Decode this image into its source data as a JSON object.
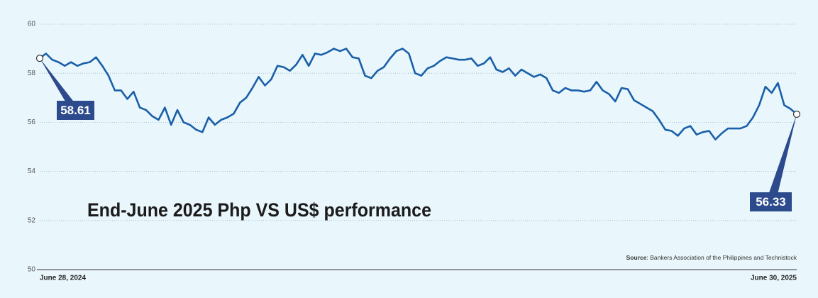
{
  "chart_data": {
    "type": "line",
    "title": "End-June 2025 Php VS US$ performance",
    "source_label": "Source",
    "source_text": ": Bankers Association of the Philippines and Technistock",
    "categories": [
      "June 28, 2024",
      null,
      null,
      null,
      null,
      null,
      null,
      null,
      null,
      null,
      null,
      null,
      null,
      null,
      null,
      null,
      null,
      null,
      null,
      null,
      null,
      null,
      null,
      null,
      null,
      null,
      null,
      null,
      null,
      null,
      null,
      null,
      null,
      null,
      null,
      null,
      null,
      null,
      null,
      null,
      null,
      null,
      null,
      null,
      null,
      null,
      null,
      null,
      null,
      null,
      null,
      null,
      null,
      null,
      null,
      null,
      null,
      null,
      null,
      null,
      null,
      null,
      null,
      null,
      null,
      null,
      null,
      null,
      null,
      null,
      null,
      null,
      null,
      null,
      null,
      null,
      null,
      null,
      null,
      null,
      null,
      null,
      null,
      null,
      null,
      null,
      null,
      null,
      null,
      null,
      null,
      null,
      null,
      null,
      null,
      null,
      null,
      null,
      null,
      null,
      null,
      null,
      null,
      null,
      null,
      null,
      null,
      null,
      null,
      null,
      null,
      null,
      null,
      null,
      null,
      null,
      null,
      null,
      null,
      null,
      null,
      "June 30, 2025"
    ],
    "values": [
      58.61,
      58.8,
      58.55,
      58.45,
      58.3,
      58.45,
      58.3,
      58.4,
      58.45,
      58.65,
      58.3,
      57.9,
      57.3,
      57.3,
      56.95,
      57.25,
      56.6,
      56.5,
      56.25,
      56.1,
      56.6,
      55.9,
      56.5,
      56.0,
      55.9,
      55.7,
      55.6,
      56.2,
      55.9,
      56.1,
      56.2,
      56.35,
      56.8,
      57.0,
      57.4,
      57.85,
      57.5,
      57.75,
      58.3,
      58.25,
      58.1,
      58.35,
      58.75,
      58.3,
      58.8,
      58.75,
      58.85,
      59.0,
      58.9,
      59.0,
      58.65,
      58.6,
      57.9,
      57.8,
      58.1,
      58.25,
      58.6,
      58.9,
      59.0,
      58.8,
      58.0,
      57.9,
      58.2,
      58.3,
      58.5,
      58.65,
      58.6,
      58.55,
      58.55,
      58.6,
      58.3,
      58.4,
      58.65,
      58.15,
      58.05,
      58.2,
      57.9,
      58.15,
      58.0,
      57.85,
      57.95,
      57.8,
      57.3,
      57.2,
      57.4,
      57.3,
      57.3,
      57.25,
      57.3,
      57.65,
      57.3,
      57.15,
      56.85,
      57.4,
      57.35,
      56.9,
      56.75,
      56.6,
      56.45,
      56.1,
      55.7,
      55.65,
      55.45,
      55.75,
      55.85,
      55.5,
      55.6,
      55.65,
      55.3,
      55.55,
      55.75,
      55.75,
      55.75,
      55.85,
      56.2,
      56.7,
      57.45,
      57.2,
      57.6,
      56.7,
      56.55,
      56.33
    ],
    "color": "#1a5fa8",
    "ylim": [
      50,
      60
    ],
    "yticks": [
      50,
      52,
      54,
      56,
      58,
      60
    ],
    "grid": true
  }
}
